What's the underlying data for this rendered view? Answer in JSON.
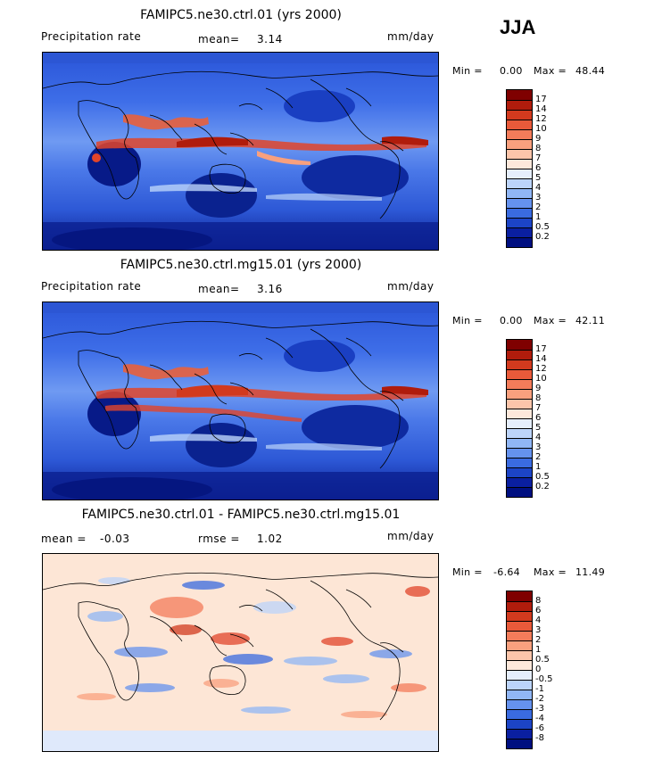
{
  "season_label": "JJA",
  "panels": [
    {
      "title": "FAMIPC5.ne30.ctrl.01 (yrs 2000)",
      "left_label": "Precipitation rate",
      "stat_label": "mean=",
      "stat_value": "3.14",
      "units": "mm/day",
      "min_label": "Min =",
      "min_value": "0.00",
      "max_label": "Max =",
      "max_value": "48.44",
      "colorbar_ticks": [
        "17",
        "14",
        "12",
        "10",
        "9",
        "8",
        "7",
        "6",
        "5",
        "4",
        "3",
        "2",
        "1",
        "0.5",
        "0.2"
      ],
      "colorbar_colors": [
        "#7f0000",
        "#b01c0c",
        "#d23a1e",
        "#e95a3a",
        "#f47c5a",
        "#f9a07e",
        "#fcc5aa",
        "#fde8db",
        "#e5eefc",
        "#bcd4fa",
        "#90b6f5",
        "#6592ee",
        "#3a6be0",
        "#1c44c6",
        "#0a1fa0",
        "#000f80"
      ]
    },
    {
      "title": "FAMIPC5.ne30.ctrl.mg15.01 (yrs 2000)",
      "left_label": "Precipitation rate",
      "stat_label": "mean=",
      "stat_value": "3.16",
      "units": "mm/day",
      "min_label": "Min =",
      "min_value": "0.00",
      "max_label": "Max =",
      "max_value": "42.11",
      "colorbar_ticks": [
        "17",
        "14",
        "12",
        "10",
        "9",
        "8",
        "7",
        "6",
        "5",
        "4",
        "3",
        "2",
        "1",
        "0.5",
        "0.2"
      ],
      "colorbar_colors": [
        "#7f0000",
        "#b01c0c",
        "#d23a1e",
        "#e95a3a",
        "#f47c5a",
        "#f9a07e",
        "#fcc5aa",
        "#fde8db",
        "#e5eefc",
        "#bcd4fa",
        "#90b6f5",
        "#6592ee",
        "#3a6be0",
        "#1c44c6",
        "#0a1fa0",
        "#000f80"
      ]
    },
    {
      "title": "FAMIPC5.ne30.ctrl.01 - FAMIPC5.ne30.ctrl.mg15.01",
      "left_label": "mean =",
      "left_value": "-0.03",
      "stat_label": "rmse =",
      "stat_value": "1.02",
      "units": "mm/day",
      "min_label": "Min =",
      "min_value": "-6.64",
      "max_label": "Max =",
      "max_value": "11.49",
      "colorbar_ticks": [
        "8",
        "6",
        "4",
        "3",
        "2",
        "1",
        "0.5",
        "0",
        "-0.5",
        "-1",
        "-2",
        "-3",
        "-4",
        "-6",
        "-8"
      ],
      "colorbar_colors": [
        "#7f0000",
        "#b01c0c",
        "#d23a1e",
        "#e95a3a",
        "#f47c5a",
        "#f9a07e",
        "#fcc5aa",
        "#fde8db",
        "#e5eefc",
        "#bcd4fa",
        "#90b6f5",
        "#6592ee",
        "#3a6be0",
        "#1c44c6",
        "#0a1fa0",
        "#000f80"
      ]
    }
  ],
  "palette": {
    "map_dark": "#0a1f8f",
    "map_mid": "#2f5fe0",
    "map_light": "#9fbff7",
    "map_warm": "#e2452a",
    "diff_bg": "#fde6d6",
    "coast": "#000000"
  }
}
